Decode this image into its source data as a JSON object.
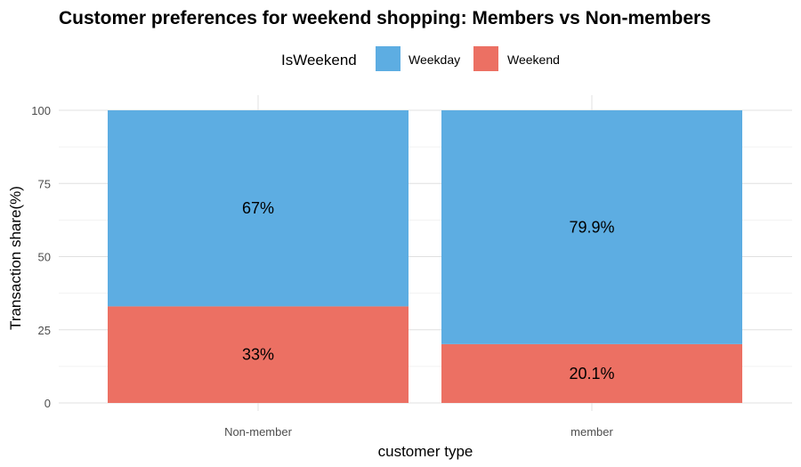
{
  "chart_data": {
    "type": "bar",
    "stacked": true,
    "title": "Customer preferences for weekend shopping: Members vs Non-members",
    "xlabel": "customer type",
    "ylabel": "Transaction share(%)",
    "categories": [
      "Non-member",
      "member"
    ],
    "legend_title": "IsWeekend",
    "legend_position": "top",
    "ylim": [
      0,
      100
    ],
    "yticks": [
      0,
      25,
      50,
      75,
      100
    ],
    "grid": true,
    "series": [
      {
        "name": "Weekday",
        "color": "#5DADE2",
        "values": [
          67,
          79.9
        ],
        "labels": [
          "67%",
          "79.9%"
        ]
      },
      {
        "name": "Weekend",
        "color": "#EC7063",
        "values": [
          33,
          20.1
        ],
        "labels": [
          "33%",
          "20.1%"
        ]
      }
    ]
  }
}
